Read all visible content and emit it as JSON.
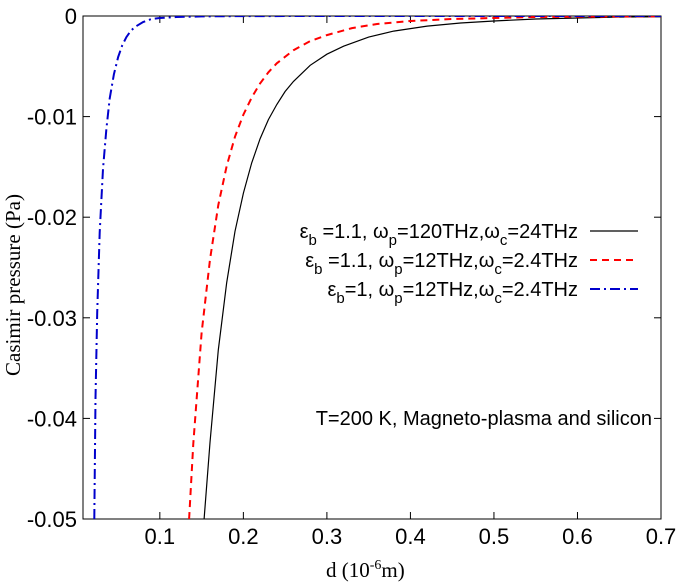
{
  "chart_data": {
    "type": "line",
    "title": "",
    "xlabel": "d (10",
    "xlabel_sup": "-6",
    "xlabel_suffix": "m)",
    "ylabel": "Casimir pressure (Pa)",
    "xlim": [
      0.02,
      0.7
    ],
    "ylim": [
      -0.05,
      0
    ],
    "x_ticks": [
      0.1,
      0.2,
      0.3,
      0.4,
      0.5,
      0.6,
      0.7
    ],
    "x_tick_labels": [
      "0.1",
      "0.2",
      "0.3",
      "0.4",
      "0.5",
      "0.6",
      "0.7"
    ],
    "y_ticks": [
      0,
      -0.01,
      -0.02,
      -0.03,
      -0.04,
      -0.05
    ],
    "y_tick_labels": [
      "0",
      "-0.01",
      "-0.02",
      "-0.03",
      "-0.04",
      "-0.05"
    ],
    "grid": false,
    "legend_position": "middle-right",
    "annotation": "T=200 K, Magneto-plasma and silicon",
    "series": [
      {
        "legend": "εb =1.1, ωp=120THz,ωc=24THz",
        "legend_parts": [
          "ε",
          "b",
          " =1.1, ω",
          "p",
          "=120THz,ω",
          "c",
          "=24THz"
        ],
        "color": "#000000",
        "dash": "solid",
        "x": [
          0.153,
          0.16,
          0.17,
          0.18,
          0.19,
          0.2,
          0.21,
          0.22,
          0.23,
          0.24,
          0.25,
          0.26,
          0.28,
          0.3,
          0.32,
          0.35,
          0.38,
          0.42,
          0.46,
          0.5,
          0.55,
          0.6,
          0.65,
          0.7
        ],
        "y": [
          -0.05,
          -0.0424,
          -0.0332,
          -0.0265,
          -0.0214,
          -0.0176,
          -0.0146,
          -0.0122,
          -0.0103,
          -0.0088,
          -0.0075,
          -0.0065,
          -0.0049,
          -0.0038,
          -0.003,
          -0.0021,
          -0.0015,
          -0.001,
          -0.0007,
          -0.0005,
          -0.0003,
          -0.0002,
          -0.0001,
          -8e-05
        ]
      },
      {
        "legend": "εb =1.1, ωp=12THz,ωc=2.4THz",
        "legend_parts": [
          "ε",
          "b",
          " =1.1, ω",
          "p",
          "=12THz,ω",
          "c",
          "=2.4THz"
        ],
        "color": "#ff0000",
        "dash": "dashed",
        "x": [
          0.135,
          0.14,
          0.15,
          0.16,
          0.17,
          0.18,
          0.19,
          0.2,
          0.21,
          0.22,
          0.23,
          0.24,
          0.26,
          0.28,
          0.3,
          0.33,
          0.36,
          0.4,
          0.45,
          0.5,
          0.55,
          0.6,
          0.65,
          0.7
        ],
        "y": [
          -0.05,
          -0.0425,
          -0.0315,
          -0.0242,
          -0.0188,
          -0.0149,
          -0.012,
          -0.0098,
          -0.0081,
          -0.0067,
          -0.0056,
          -0.0047,
          -0.0034,
          -0.0025,
          -0.0019,
          -0.0012,
          -0.0008,
          -0.0005,
          -0.0003,
          -0.0002,
          -0.0001,
          -7e-05,
          -5e-05,
          -3e-05
        ]
      },
      {
        "legend": "εb=1, ωp=12THz,ωc=2.4THz",
        "legend_parts": [
          "ε",
          "b",
          "=1, ω",
          "p",
          "=12THz,ω",
          "c",
          "=2.4THz"
        ],
        "color": "#0000cc",
        "dash": "dashdot",
        "x": [
          0.0215,
          0.023,
          0.025,
          0.028,
          0.032,
          0.036,
          0.04,
          0.045,
          0.05,
          0.055,
          0.06,
          0.065,
          0.07,
          0.08,
          0.09,
          0.1,
          0.12,
          0.15,
          0.2,
          0.3,
          0.4,
          0.5,
          0.6,
          0.7
        ],
        "y": [
          -0.05,
          -0.038,
          -0.0295,
          -0.0215,
          -0.0152,
          -0.0112,
          -0.0082,
          -0.0058,
          -0.0041,
          -0.0029,
          -0.0021,
          -0.0015,
          -0.0011,
          -0.0006,
          -0.0003,
          -0.0002,
          -0.0001,
          -4e-05,
          -1e-05,
          0,
          0,
          0,
          0,
          0
        ]
      }
    ]
  }
}
